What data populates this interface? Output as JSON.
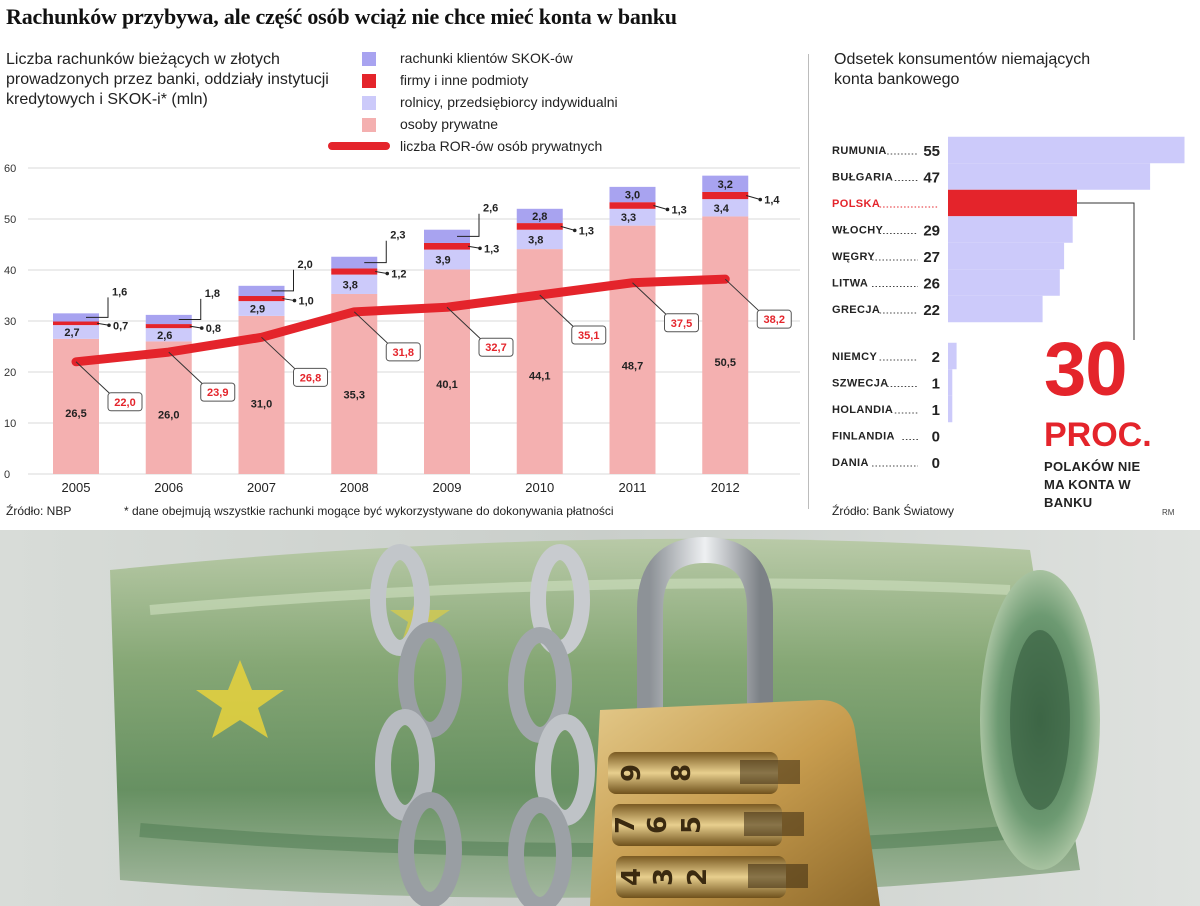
{
  "headline": "Rachunków przybywa, ale część osób wciąż nie chce mieć konta w banku",
  "chart_data": [
    {
      "type": "bar",
      "title": "Liczba rachunków bieżących w złotych prowadzonych przez banki, oddziały instytucji kredytowych i SKOK-i* (mln)",
      "categories": [
        "2005",
        "2006",
        "2007",
        "2008",
        "2009",
        "2010",
        "2011",
        "2012"
      ],
      "ylim": [
        0,
        60
      ],
      "yticks": [
        "0",
        "10",
        "20",
        "30",
        "40",
        "50",
        "60"
      ],
      "grid": true,
      "stacked": true,
      "series": [
        {
          "name": "osoby prywatne",
          "color": "#f4b0b0",
          "values": [
            26.5,
            26.0,
            31.0,
            35.3,
            40.1,
            44.1,
            48.7,
            50.5
          ],
          "labels": [
            "26,5",
            "26,0",
            "31,0",
            "35,3",
            "40,1",
            "44,1",
            "48,7",
            "50,5"
          ]
        },
        {
          "name": "rolnicy, przedsiębiorcy indywidualni",
          "color": "#cccafa",
          "values": [
            2.7,
            2.6,
            2.9,
            3.8,
            3.9,
            3.8,
            3.3,
            3.4
          ],
          "labels": [
            "2,7",
            "2,6",
            "2,9",
            "3,8",
            "3,9",
            "3,8",
            "3,3",
            "3,4"
          ]
        },
        {
          "name": "firmy i inne podmioty",
          "color": "#e4242b",
          "values": [
            0.7,
            0.8,
            1.0,
            1.2,
            1.3,
            1.3,
            1.3,
            1.4
          ],
          "labels": [
            "0,7",
            "0,8",
            "1,0",
            "1,2",
            "1,3",
            "1,3",
            "1,3",
            "1,4"
          ]
        },
        {
          "name": "rachunki klientów SKOK-ów",
          "color": "#a8a3f0",
          "values": [
            1.6,
            1.8,
            2.0,
            2.3,
            2.6,
            2.8,
            3.0,
            3.2
          ],
          "labels": [
            "1,6",
            "1,8",
            "2,0",
            "2,3",
            "2,6",
            "2,8",
            "3,0",
            "3,2"
          ]
        }
      ],
      "line_series": {
        "name": "liczba ROR-ów osób prywatnych",
        "color": "#e4242b",
        "values": [
          22.0,
          23.9,
          26.8,
          31.8,
          32.7,
          35.1,
          37.5,
          38.2
        ],
        "labels": [
          "22,0",
          "23,9",
          "26,8",
          "31,8",
          "32,7",
          "35,1",
          "37,5",
          "38,2"
        ]
      },
      "legend": [
        "rachunki klientów SKOK-ów",
        "firmy i inne podmioty",
        "rolnicy, przedsiębiorcy indywidualni",
        "osoby prywatne",
        "liczba ROR-ów osób prywatnych"
      ]
    },
    {
      "type": "bar",
      "orientation": "horizontal",
      "title": "Odsetek konsumentów niemających konta bankowego",
      "groups": [
        {
          "categories": [
            "RUMUNIA",
            "BUŁGARIA",
            "POLSKA",
            "WŁOCHY",
            "WĘGRY",
            "LITWA",
            "GRECJA"
          ],
          "values": [
            55,
            47,
            30,
            29,
            27,
            26,
            22
          ],
          "labels": [
            "55",
            "47",
            "",
            "29",
            "27",
            "26",
            "22"
          ]
        },
        {
          "categories": [
            "NIEMCY",
            "SZWECJA",
            "HOLANDIA",
            "FINLANDIA",
            "DANIA"
          ],
          "values": [
            2,
            1,
            1,
            0,
            0
          ],
          "labels": [
            "2",
            "1",
            "1",
            "0",
            "0"
          ]
        }
      ],
      "highlight": "POLSKA"
    }
  ],
  "highlight_box": {
    "number": "30",
    "unit": "PROC.",
    "caption": "POLAKÓW NIE MA KONTA W BANKU"
  },
  "colors": {
    "accent": "#e4242b",
    "highlight": "#e4242b",
    "bar_light": "#cccafa",
    "bar_pink": "#f4b0b0",
    "bar_purple": "#a8a3f0"
  },
  "sources": {
    "left": "Źródło: NBP",
    "footnote": "* dane obejmują wszystkie rachunki mogące być wykorzystywane do dokonywania płatności",
    "right": "Źródło: Bank Światowy",
    "mark": "RM"
  },
  "photo": {
    "icons": [
      "banknote-roll-icon",
      "chain-icon",
      "combination-padlock-icon"
    ],
    "lock_digits": [
      "9",
      "8",
      "7",
      "6",
      "5",
      "4",
      "3",
      "2"
    ]
  }
}
